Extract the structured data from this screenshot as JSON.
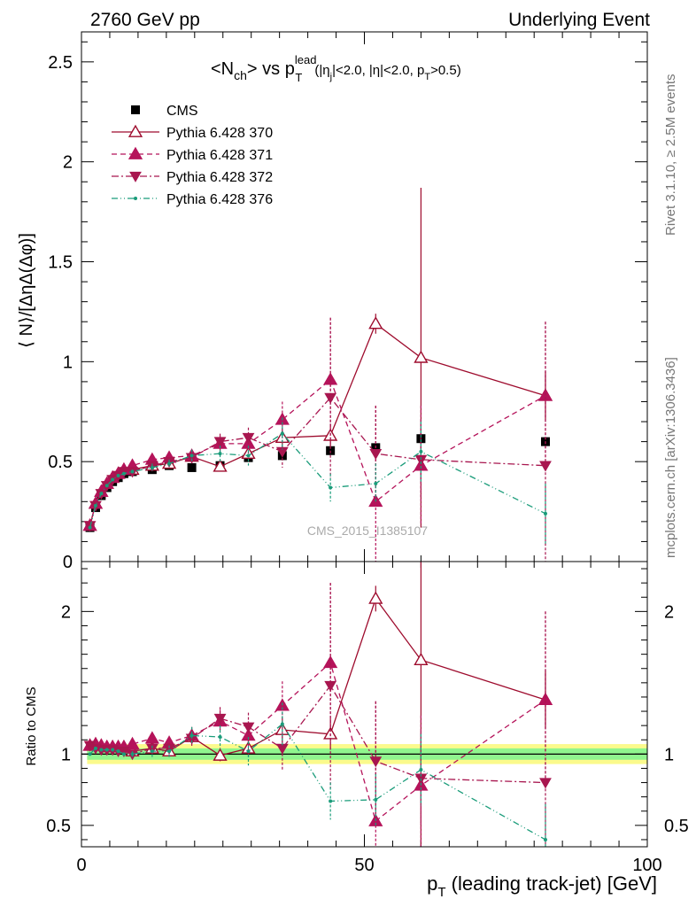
{
  "header": {
    "left": "2760 GeV pp",
    "right": "Underlying Event"
  },
  "side_labels": {
    "rivet": "Rivet 3.1.10, ≥ 2.5M events",
    "mcplots": "mcplots.cern.ch [arXiv:1306.3436]"
  },
  "title_parts": {
    "lt": "<N",
    "ch": "ch",
    "gt": "> vs p",
    "lead": "lead",
    "T": "T",
    "cut_a": "(|η",
    "j": "j",
    "cut_b": "|<2.0, |η|<2.0, p",
    "T2": "T",
    "cut_c": ">0.5)"
  },
  "watermark": "CMS_2015_I1385107",
  "xlabel": {
    "p": "p",
    "T": "T",
    "rest": " (leading track-jet) [GeV]"
  },
  "colors": {
    "cms": "#000000",
    "p370": "#9e0b2d",
    "p371": "#b5135a",
    "p372": "#a8164f",
    "p376": "#1a9c7a",
    "band_outer": "#fbfa8c",
    "band_inner": "#90f58e"
  },
  "chart_data": [
    {
      "type": "scatter",
      "panel": "main",
      "ylabel": "⟨ N⟩/[ΔηΔ(Δφ)]",
      "xlim": [
        0,
        100
      ],
      "ylim": [
        0,
        2.65
      ],
      "y_ticks": [
        "0",
        "0.5",
        "1",
        "1.5",
        "2",
        "2.5"
      ],
      "legend": "top-left",
      "series": [
        {
          "name": "CMS",
          "marker": "square",
          "x": [
            1.5,
            2.5,
            3.5,
            4.5,
            5.5,
            6.5,
            7.5,
            9.0,
            12.5,
            15.5,
            19.5,
            24.5,
            29.5,
            35.5,
            44.0,
            52.0,
            60.0,
            82.0
          ],
          "y": [
            0.17,
            0.27,
            0.33,
            0.37,
            0.4,
            0.42,
            0.44,
            0.45,
            0.46,
            0.48,
            0.47,
            0.48,
            0.52,
            0.53,
            0.555,
            0.57,
            0.615,
            0.6
          ]
        },
        {
          "name": "Pythia 6.428 370",
          "marker": "open-triangle-up",
          "x": [
            1.5,
            2.5,
            3.5,
            4.5,
            5.5,
            6.5,
            7.5,
            9.0,
            12.5,
            15.5,
            19.5,
            24.5,
            29.5,
            35.5,
            44.0,
            52.0,
            60.0,
            82.0
          ],
          "y": [
            0.18,
            0.29,
            0.35,
            0.39,
            0.42,
            0.44,
            0.46,
            0.46,
            0.48,
            0.49,
            0.525,
            0.475,
            0.54,
            0.62,
            0.63,
            1.19,
            1.02,
            0.83
          ],
          "yerr": [
            0,
            0,
            0,
            0,
            0,
            0,
            0,
            0,
            0,
            0,
            0.02,
            0.02,
            0.03,
            0.05,
            0.06,
            0.05,
            0.85,
            0.12
          ]
        },
        {
          "name": "Pythia 6.428 371",
          "marker": "triangle-up",
          "x": [
            1.5,
            2.5,
            3.5,
            4.5,
            5.5,
            6.5,
            7.5,
            9.0,
            12.5,
            15.5,
            19.5,
            24.5,
            29.5,
            35.5,
            44.0,
            52.0,
            60.0,
            82.0
          ],
          "y": [
            0.18,
            0.29,
            0.35,
            0.39,
            0.42,
            0.44,
            0.46,
            0.48,
            0.51,
            0.52,
            0.53,
            0.59,
            0.59,
            0.71,
            0.91,
            0.3,
            0.48,
            0.83
          ],
          "yerr": [
            0,
            0,
            0,
            0,
            0,
            0,
            0,
            0.01,
            0.02,
            0.02,
            0.03,
            0.04,
            0.05,
            0.09,
            0.31,
            0.48,
            0.3,
            0.37
          ]
        },
        {
          "name": "Pythia 6.428 372",
          "marker": "triangle-down",
          "x": [
            1.5,
            2.5,
            3.5,
            4.5,
            5.5,
            6.5,
            7.5,
            9.0,
            12.5,
            15.5,
            19.5,
            24.5,
            29.5,
            35.5,
            44.0,
            52.0,
            60.0,
            82.0
          ],
          "y": [
            0.18,
            0.28,
            0.34,
            0.38,
            0.41,
            0.43,
            0.45,
            0.45,
            0.48,
            0.5,
            0.52,
            0.6,
            0.62,
            0.55,
            0.82,
            0.54,
            0.51,
            0.48
          ],
          "yerr": [
            0,
            0,
            0,
            0,
            0,
            0,
            0,
            0.01,
            0.02,
            0.02,
            0.03,
            0.04,
            0.05,
            0.08,
            0.4,
            0.24,
            0.2,
            0.72
          ]
        },
        {
          "name": "Pythia 6.428 376",
          "marker": "dot",
          "x": [
            1.5,
            2.5,
            3.5,
            4.5,
            5.5,
            6.5,
            7.5,
            9.0,
            12.5,
            15.5,
            19.5,
            24.5,
            29.5,
            35.5,
            44.0,
            52.0,
            60.0,
            82.0
          ],
          "y": [
            0.17,
            0.28,
            0.34,
            0.38,
            0.41,
            0.43,
            0.44,
            0.45,
            0.47,
            0.49,
            0.53,
            0.54,
            0.53,
            0.64,
            0.37,
            0.39,
            0.55,
            0.24
          ],
          "yerr": [
            0,
            0,
            0,
            0,
            0,
            0,
            0,
            0.01,
            0.02,
            0.02,
            0.03,
            0.04,
            0.05,
            0.08,
            0.07,
            0.1,
            0.15,
            0.15
          ]
        }
      ]
    },
    {
      "type": "line",
      "panel": "ratio",
      "ylabel": "Ratio to CMS",
      "xlim": [
        0,
        100
      ],
      "ylim": [
        0.35,
        2.35
      ],
      "y_ticks": [
        "0.5",
        "1",
        "2"
      ],
      "x_ticks": [
        "0",
        "50",
        "100"
      ],
      "band": {
        "x": [
          1,
          100
        ],
        "outer": [
          0.93,
          1.07
        ],
        "inner": [
          0.96,
          1.04
        ]
      },
      "series": [
        {
          "name": "Pythia 6.428 370",
          "x": [
            1.5,
            2.5,
            3.5,
            4.5,
            5.5,
            6.5,
            7.5,
            9.0,
            12.5,
            15.5,
            19.5,
            24.5,
            29.5,
            35.5,
            44.0,
            52.0,
            60.0,
            82.0
          ],
          "y": [
            1.06,
            1.07,
            1.06,
            1.05,
            1.05,
            1.05,
            1.05,
            1.02,
            1.04,
            1.02,
            1.12,
            0.99,
            1.04,
            1.17,
            1.14,
            2.09,
            1.66,
            1.38
          ],
          "yerr": [
            0,
            0,
            0,
            0,
            0,
            0,
            0,
            0,
            0,
            0,
            0.04,
            0.04,
            0.06,
            0.09,
            0.11,
            0.09,
            1.38,
            0.2
          ]
        },
        {
          "name": "Pythia 6.428 371",
          "x": [
            1.5,
            2.5,
            3.5,
            4.5,
            5.5,
            6.5,
            7.5,
            9.0,
            12.5,
            15.5,
            19.5,
            24.5,
            29.5,
            35.5,
            44.0,
            52.0,
            60.0,
            82.0
          ],
          "y": [
            1.06,
            1.07,
            1.06,
            1.05,
            1.05,
            1.05,
            1.05,
            1.07,
            1.11,
            1.08,
            1.13,
            1.23,
            1.13,
            1.34,
            1.64,
            0.53,
            0.78,
            1.38
          ],
          "yerr": [
            0,
            0,
            0,
            0,
            0,
            0,
            0,
            0.02,
            0.04,
            0.04,
            0.06,
            0.08,
            0.1,
            0.17,
            0.56,
            0.84,
            0.49,
            0.62
          ]
        },
        {
          "name": "Pythia 6.428 372",
          "x": [
            1.5,
            2.5,
            3.5,
            4.5,
            5.5,
            6.5,
            7.5,
            9.0,
            12.5,
            15.5,
            19.5,
            24.5,
            29.5,
            35.5,
            44.0,
            52.0,
            60.0,
            82.0
          ],
          "y": [
            1.06,
            1.04,
            1.03,
            1.03,
            1.03,
            1.02,
            1.02,
            1.0,
            1.04,
            1.04,
            1.11,
            1.25,
            1.19,
            1.04,
            1.48,
            0.95,
            0.83,
            0.8
          ],
          "yerr": [
            0,
            0,
            0,
            0,
            0,
            0,
            0,
            0.02,
            0.04,
            0.04,
            0.06,
            0.08,
            0.1,
            0.15,
            0.72,
            0.42,
            0.33,
            1.2
          ]
        },
        {
          "name": "Pythia 6.428 376",
          "x": [
            1.5,
            2.5,
            3.5,
            4.5,
            5.5,
            6.5,
            7.5,
            9.0,
            12.5,
            15.5,
            19.5,
            24.5,
            29.5,
            35.5,
            44.0,
            52.0,
            60.0,
            82.0
          ],
          "y": [
            1.0,
            1.04,
            1.03,
            1.03,
            1.03,
            1.02,
            1.0,
            1.0,
            1.02,
            1.02,
            1.13,
            1.12,
            1.02,
            1.21,
            0.67,
            0.68,
            0.89,
            0.4
          ],
          "yerr": [
            0,
            0,
            0,
            0,
            0,
            0,
            0,
            0.02,
            0.04,
            0.04,
            0.06,
            0.08,
            0.1,
            0.15,
            0.13,
            0.18,
            0.25,
            0.25
          ]
        }
      ]
    }
  ]
}
